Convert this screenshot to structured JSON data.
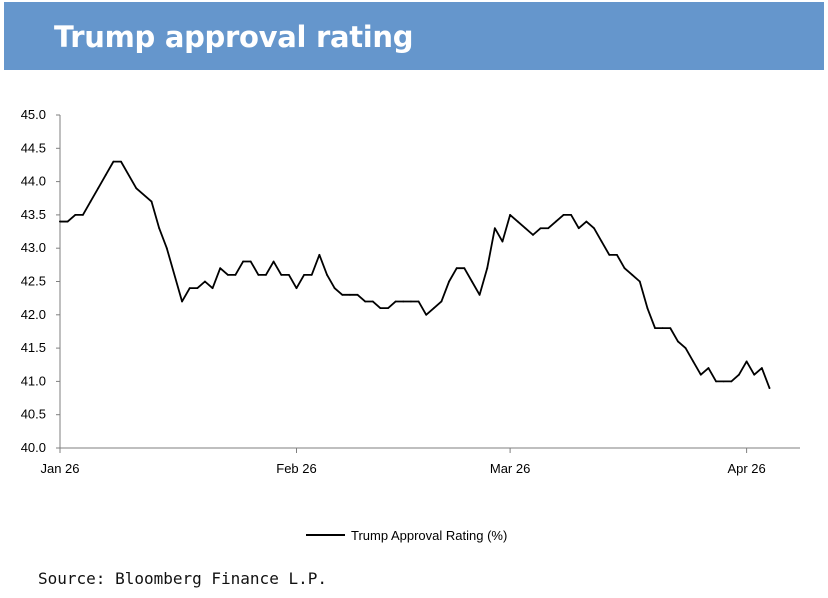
{
  "header": {
    "title": "Trump approval rating"
  },
  "source": "Source: Bloomberg Finance L.P.",
  "colors": {
    "header_bg": "#6596cc",
    "line": "#000000",
    "axis": "#7f7f7f"
  },
  "chart_data": {
    "type": "line",
    "title": "Trump approval rating",
    "xlabel": "",
    "ylabel": "",
    "ylim": [
      40.0,
      45.0
    ],
    "yticks": [
      "40.0",
      "40.5",
      "41.0",
      "41.5",
      "42.0",
      "42.5",
      "43.0",
      "43.5",
      "44.0",
      "44.5",
      "45.0"
    ],
    "xticks": [
      {
        "label": "Jan 26",
        "date": "2025-01-26"
      },
      {
        "label": "Feb 26",
        "date": "2025-02-26"
      },
      {
        "label": "Mar 26",
        "date": "2025-03-26"
      },
      {
        "label": "Apr 26",
        "date": "2025-04-26"
      }
    ],
    "xlim": [
      "2025-01-26",
      "2025-05-03"
    ],
    "grid": false,
    "legend_position": "bottom",
    "series": [
      {
        "name": "Trump Approval Rating (%)",
        "points": [
          [
            "2025-01-26",
            43.4
          ],
          [
            "2025-01-27",
            43.4
          ],
          [
            "2025-01-28",
            43.5
          ],
          [
            "2025-01-29",
            43.5
          ],
          [
            "2025-01-30",
            43.7
          ],
          [
            "2025-01-31",
            43.9
          ],
          [
            "2025-02-01",
            44.1
          ],
          [
            "2025-02-02",
            44.3
          ],
          [
            "2025-02-03",
            44.3
          ],
          [
            "2025-02-05",
            43.9
          ],
          [
            "2025-02-07",
            43.7
          ],
          [
            "2025-02-08",
            43.3
          ],
          [
            "2025-02-09",
            43.0
          ],
          [
            "2025-02-11",
            42.2
          ],
          [
            "2025-02-12",
            42.4
          ],
          [
            "2025-02-13",
            42.4
          ],
          [
            "2025-02-14",
            42.5
          ],
          [
            "2025-02-15",
            42.4
          ],
          [
            "2025-02-16",
            42.7
          ],
          [
            "2025-02-17",
            42.6
          ],
          [
            "2025-02-18",
            42.6
          ],
          [
            "2025-02-19",
            42.8
          ],
          [
            "2025-02-20",
            42.8
          ],
          [
            "2025-02-21",
            42.6
          ],
          [
            "2025-02-22",
            42.6
          ],
          [
            "2025-02-23",
            42.8
          ],
          [
            "2025-02-24",
            42.6
          ],
          [
            "2025-02-25",
            42.6
          ],
          [
            "2025-02-26",
            42.4
          ],
          [
            "2025-02-27",
            42.6
          ],
          [
            "2025-02-28",
            42.6
          ],
          [
            "2025-03-01",
            42.9
          ],
          [
            "2025-03-02",
            42.6
          ],
          [
            "2025-03-03",
            42.4
          ],
          [
            "2025-03-04",
            42.3
          ],
          [
            "2025-03-05",
            42.3
          ],
          [
            "2025-03-06",
            42.3
          ],
          [
            "2025-03-07",
            42.2
          ],
          [
            "2025-03-08",
            42.2
          ],
          [
            "2025-03-09",
            42.1
          ],
          [
            "2025-03-10",
            42.1
          ],
          [
            "2025-03-11",
            42.2
          ],
          [
            "2025-03-12",
            42.2
          ],
          [
            "2025-03-13",
            42.2
          ],
          [
            "2025-03-14",
            42.2
          ],
          [
            "2025-03-15",
            42.0
          ],
          [
            "2025-03-16",
            42.1
          ],
          [
            "2025-03-17",
            42.2
          ],
          [
            "2025-03-18",
            42.5
          ],
          [
            "2025-03-19",
            42.7
          ],
          [
            "2025-03-20",
            42.7
          ],
          [
            "2025-03-21",
            42.5
          ],
          [
            "2025-03-22",
            42.3
          ],
          [
            "2025-03-23",
            42.7
          ],
          [
            "2025-03-24",
            43.3
          ],
          [
            "2025-03-25",
            43.1
          ],
          [
            "2025-03-26",
            43.5
          ],
          [
            "2025-03-27",
            43.4
          ],
          [
            "2025-03-28",
            43.3
          ],
          [
            "2025-03-29",
            43.2
          ],
          [
            "2025-03-30",
            43.3
          ],
          [
            "2025-03-31",
            43.3
          ],
          [
            "2025-04-01",
            43.4
          ],
          [
            "2025-04-02",
            43.5
          ],
          [
            "2025-04-03",
            43.5
          ],
          [
            "2025-04-04",
            43.3
          ],
          [
            "2025-04-05",
            43.4
          ],
          [
            "2025-04-06",
            43.3
          ],
          [
            "2025-04-07",
            43.1
          ],
          [
            "2025-04-08",
            42.9
          ],
          [
            "2025-04-09",
            42.9
          ],
          [
            "2025-04-10",
            42.7
          ],
          [
            "2025-04-11",
            42.6
          ],
          [
            "2025-04-12",
            42.5
          ],
          [
            "2025-04-13",
            42.1
          ],
          [
            "2025-04-14",
            41.8
          ],
          [
            "2025-04-15",
            41.8
          ],
          [
            "2025-04-16",
            41.8
          ],
          [
            "2025-04-17",
            41.6
          ],
          [
            "2025-04-18",
            41.5
          ],
          [
            "2025-04-19",
            41.3
          ],
          [
            "2025-04-20",
            41.1
          ],
          [
            "2025-04-21",
            41.2
          ],
          [
            "2025-04-22",
            41.0
          ],
          [
            "2025-04-23",
            41.0
          ],
          [
            "2025-04-24",
            41.0
          ],
          [
            "2025-04-25",
            41.1
          ],
          [
            "2025-04-26",
            41.3
          ],
          [
            "2025-04-27",
            41.1
          ],
          [
            "2025-04-28",
            41.2
          ],
          [
            "2025-04-29",
            40.9
          ]
        ]
      }
    ]
  }
}
